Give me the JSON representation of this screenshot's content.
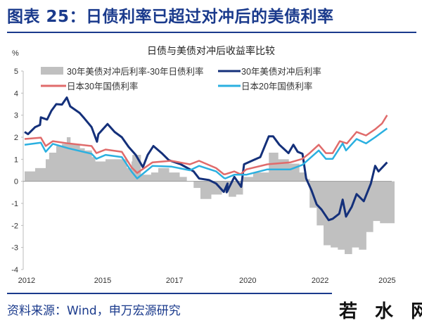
{
  "header": {
    "title": "图表 25：日债利率已超过对冲后的美债利率"
  },
  "footer": {
    "source": "资料来源：Wind，申万宏源研究",
    "watermark": "若水网"
  },
  "chart_data": {
    "type": "line",
    "title": "日债与美债对冲后收益率比较",
    "ylabel": "%",
    "xlabel": "",
    "ylim": [
      -4,
      5
    ],
    "yticks": [
      5,
      4,
      3,
      2,
      1,
      0,
      -1,
      -2,
      -3,
      -4
    ],
    "xlim": [
      2012.0,
      2025.5
    ],
    "xticks": [
      {
        "label": "2012",
        "at": 2012.07
      },
      {
        "label": "2015",
        "at": 2014.74
      },
      {
        "label": "2017",
        "at": 2017.26
      },
      {
        "label": "2020",
        "at": 2019.83
      },
      {
        "label": "2022",
        "at": 2022.37
      },
      {
        "label": "2025",
        "at": 2024.72
      }
    ],
    "legend_position": "top",
    "series": [
      {
        "name": "30年美债对冲后利率-30年日债利率",
        "kind": "bar",
        "color": "#c0c0c0",
        "points": [
          [
            2012.0,
            0.45
          ],
          [
            2012.37,
            0.6
          ],
          [
            2012.74,
            1.0
          ],
          [
            2012.86,
            1.3
          ],
          [
            2013.11,
            1.6
          ],
          [
            2013.31,
            1.7
          ],
          [
            2013.48,
            2.0
          ],
          [
            2013.6,
            1.7
          ],
          [
            2013.93,
            1.5
          ],
          [
            2014.1,
            1.4
          ],
          [
            2014.35,
            1.1
          ],
          [
            2014.47,
            0.9
          ],
          [
            2014.84,
            1.0
          ],
          [
            2015.16,
            1.0
          ],
          [
            2015.41,
            1.0
          ],
          [
            2015.58,
            0.6
          ],
          [
            2015.75,
            0.9
          ],
          [
            2015.78,
            1.2
          ],
          [
            2016.07,
            0.3
          ],
          [
            2016.44,
            0.4
          ],
          [
            2016.69,
            0.6
          ],
          [
            2017.06,
            0.4
          ],
          [
            2017.43,
            0.2
          ],
          [
            2017.68,
            0.0
          ],
          [
            2017.93,
            -0.3
          ],
          [
            2018.17,
            -0.8
          ],
          [
            2018.54,
            -0.6
          ],
          [
            2018.91,
            -0.5
          ],
          [
            2019.16,
            -0.7
          ],
          [
            2019.41,
            -0.6
          ],
          [
            2019.65,
            0.2
          ],
          [
            2020.02,
            0.4
          ],
          [
            2020.27,
            0.4
          ],
          [
            2020.57,
            1.3
          ],
          [
            2020.89,
            1.0
          ],
          [
            2021.26,
            0.8
          ],
          [
            2021.63,
            0.4
          ],
          [
            2021.83,
            0.1
          ],
          [
            2022.0,
            -1.2
          ],
          [
            2022.25,
            -2.0
          ],
          [
            2022.49,
            -2.9
          ],
          [
            2022.74,
            -3.0
          ],
          [
            2022.99,
            -3.1
          ],
          [
            2023.23,
            -3.3
          ],
          [
            2023.48,
            -3.0
          ],
          [
            2023.73,
            -3.1
          ],
          [
            2023.98,
            -2.3
          ],
          [
            2024.22,
            -1.8
          ],
          [
            2024.47,
            -1.9
          ],
          [
            2024.72,
            -1.9
          ]
        ]
      },
      {
        "name": "30年美债对冲后利率",
        "kind": "line",
        "color": "#14307a",
        "points": [
          [
            2012.0,
            2.24
          ],
          [
            2012.12,
            2.14
          ],
          [
            2012.37,
            2.46
          ],
          [
            2012.54,
            2.56
          ],
          [
            2012.57,
            2.9
          ],
          [
            2012.79,
            2.8
          ],
          [
            2012.94,
            3.2
          ],
          [
            2013.11,
            3.5
          ],
          [
            2013.31,
            3.48
          ],
          [
            2013.48,
            3.8
          ],
          [
            2013.6,
            3.4
          ],
          [
            2013.93,
            3.1
          ],
          [
            2014.1,
            2.85
          ],
          [
            2014.35,
            2.46
          ],
          [
            2014.54,
            1.8
          ],
          [
            2014.59,
            2.14
          ],
          [
            2014.91,
            2.6
          ],
          [
            2015.16,
            2.24
          ],
          [
            2015.41,
            2.0
          ],
          [
            2015.65,
            1.56
          ],
          [
            2015.9,
            1.2
          ],
          [
            2016.15,
            0.64
          ],
          [
            2016.32,
            1.2
          ],
          [
            2016.52,
            1.6
          ],
          [
            2016.81,
            1.28
          ],
          [
            2017.06,
            0.96
          ],
          [
            2017.48,
            0.77
          ],
          [
            2017.93,
            0.45
          ],
          [
            2018.12,
            0.13
          ],
          [
            2018.47,
            0.06
          ],
          [
            2018.72,
            -0.1
          ],
          [
            2018.99,
            -0.48
          ],
          [
            2019.12,
            -0.1
          ],
          [
            2019.09,
            -0.5
          ],
          [
            2019.36,
            0.2
          ],
          [
            2019.6,
            -0.25
          ],
          [
            2019.7,
            0.77
          ],
          [
            2020.02,
            0.96
          ],
          [
            2020.27,
            1.1
          ],
          [
            2020.57,
            2.04
          ],
          [
            2020.72,
            2.04
          ],
          [
            2020.94,
            1.66
          ],
          [
            2021.26,
            1.28
          ],
          [
            2021.43,
            1.66
          ],
          [
            2021.58,
            1.34
          ],
          [
            2021.75,
            1.25
          ],
          [
            2021.88,
            0.13
          ],
          [
            2022.07,
            -0.42
          ],
          [
            2022.25,
            -1.05
          ],
          [
            2022.42,
            -1.28
          ],
          [
            2022.67,
            -1.76
          ],
          [
            2022.81,
            -1.7
          ],
          [
            2023.04,
            -1.47
          ],
          [
            2023.16,
            -0.83
          ],
          [
            2023.28,
            -1.6
          ],
          [
            2023.48,
            -1.15
          ],
          [
            2023.65,
            -0.58
          ],
          [
            2023.9,
            -0.9
          ],
          [
            2024.15,
            -0.1
          ],
          [
            2024.3,
            0.7
          ],
          [
            2024.42,
            0.45
          ],
          [
            2024.72,
            0.86
          ]
        ]
      },
      {
        "name": "日本30年国债利率",
        "kind": "line",
        "color": "#e06b6b",
        "points": [
          [
            2012.0,
            1.92
          ],
          [
            2012.57,
            1.98
          ],
          [
            2012.74,
            1.6
          ],
          [
            2012.99,
            1.82
          ],
          [
            2013.53,
            1.72
          ],
          [
            2014.35,
            1.6
          ],
          [
            2014.52,
            1.28
          ],
          [
            2014.84,
            1.44
          ],
          [
            2015.41,
            1.34
          ],
          [
            2015.75,
            0.64
          ],
          [
            2015.95,
            0.38
          ],
          [
            2016.49,
            0.86
          ],
          [
            2017.14,
            0.93
          ],
          [
            2017.8,
            0.77
          ],
          [
            2018.12,
            0.93
          ],
          [
            2018.72,
            0.6
          ],
          [
            2018.99,
            0.32
          ],
          [
            2019.04,
            0.32
          ],
          [
            2019.36,
            0.45
          ],
          [
            2019.58,
            0.32
          ],
          [
            2019.78,
            0.54
          ],
          [
            2020.52,
            0.77
          ],
          [
            2021.33,
            0.86
          ],
          [
            2021.75,
            1.02
          ],
          [
            2022.0,
            1.28
          ],
          [
            2022.32,
            1.66
          ],
          [
            2022.57,
            1.28
          ],
          [
            2022.81,
            1.28
          ],
          [
            2023.06,
            1.82
          ],
          [
            2023.31,
            1.72
          ],
          [
            2023.65,
            2.24
          ],
          [
            2023.98,
            2.08
          ],
          [
            2024.3,
            2.36
          ],
          [
            2024.54,
            2.62
          ],
          [
            2024.72,
            3.0
          ]
        ]
      },
      {
        "name": "日本20年国债利率",
        "kind": "line",
        "color": "#2bb0e0",
        "points": [
          [
            2012.0,
            1.66
          ],
          [
            2012.57,
            1.75
          ],
          [
            2012.74,
            1.34
          ],
          [
            2012.99,
            1.7
          ],
          [
            2013.53,
            1.5
          ],
          [
            2014.35,
            1.25
          ],
          [
            2014.52,
            1.02
          ],
          [
            2014.84,
            1.2
          ],
          [
            2015.41,
            1.1
          ],
          [
            2015.75,
            0.45
          ],
          [
            2015.95,
            0.13
          ],
          [
            2016.49,
            0.7
          ],
          [
            2017.14,
            0.67
          ],
          [
            2017.8,
            0.5
          ],
          [
            2018.12,
            0.7
          ],
          [
            2018.72,
            0.45
          ],
          [
            2018.99,
            0.16
          ],
          [
            2019.04,
            0.13
          ],
          [
            2019.36,
            0.3
          ],
          [
            2019.78,
            0.3
          ],
          [
            2020.52,
            0.54
          ],
          [
            2021.33,
            0.54
          ],
          [
            2021.75,
            0.75
          ],
          [
            2022.32,
            1.4
          ],
          [
            2022.57,
            1.02
          ],
          [
            2022.81,
            1.02
          ],
          [
            2023.16,
            1.72
          ],
          [
            2023.28,
            1.4
          ],
          [
            2023.65,
            1.92
          ],
          [
            2023.98,
            1.72
          ],
          [
            2024.3,
            2.0
          ],
          [
            2024.72,
            2.4
          ]
        ]
      }
    ]
  }
}
